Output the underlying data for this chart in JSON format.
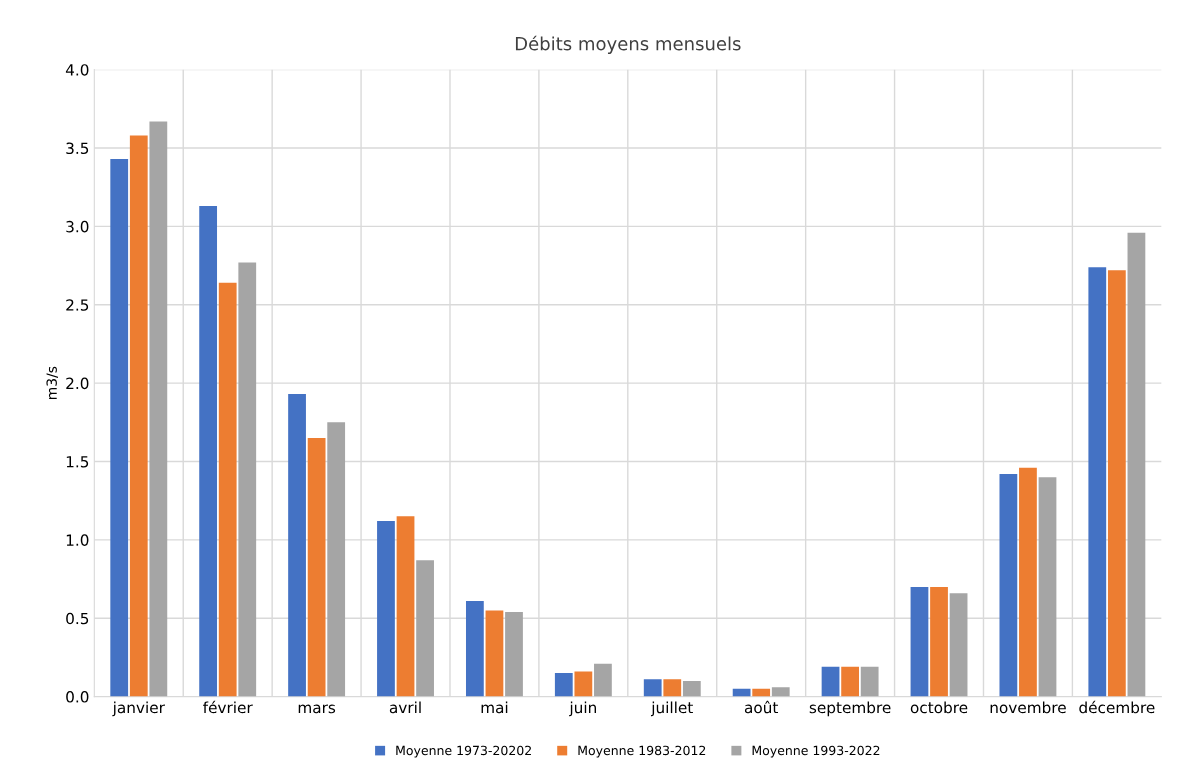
{
  "chart_data": {
    "type": "bar",
    "title": "Débits moyens mensuels",
    "ylabel": "m3/s",
    "categories": [
      "janvier",
      "février",
      "mars",
      "avril",
      "mai",
      "juin",
      "juillet",
      "août",
      "septembre",
      "octobre",
      "novembre",
      "décembre"
    ],
    "series": [
      {
        "name": "Moyenne 1973-20202",
        "color": "#4472c4",
        "values": [
          3.43,
          3.13,
          1.93,
          1.12,
          0.61,
          0.15,
          0.11,
          0.05,
          0.19,
          0.7,
          1.42,
          2.74
        ]
      },
      {
        "name": "Moyenne 1983-2012",
        "color": "#ed7d31",
        "values": [
          3.58,
          2.64,
          1.65,
          1.15,
          0.55,
          0.16,
          0.11,
          0.05,
          0.19,
          0.7,
          1.46,
          2.72
        ]
      },
      {
        "name": "Moyenne 1993-2022",
        "color": "#a5a5a5",
        "values": [
          3.67,
          2.77,
          1.75,
          0.87,
          0.54,
          0.21,
          0.1,
          0.06,
          0.19,
          0.66,
          1.4,
          2.96
        ]
      }
    ],
    "ylim": [
      0,
      4
    ],
    "yticks": [
      {
        "value": 0,
        "label": "0.0"
      },
      {
        "value": 0.5,
        "label": "0.5"
      },
      {
        "value": 1,
        "label": "1.0"
      },
      {
        "value": 1.5,
        "label": "1.5"
      },
      {
        "value": 2,
        "label": "2.0"
      },
      {
        "value": 2.5,
        "label": "2.5"
      },
      {
        "value": 3,
        "label": "3.0"
      },
      {
        "value": 3.5,
        "label": "3.5"
      },
      {
        "value": 4,
        "label": "4.0"
      }
    ],
    "grid": true,
    "legend": "bottom"
  }
}
